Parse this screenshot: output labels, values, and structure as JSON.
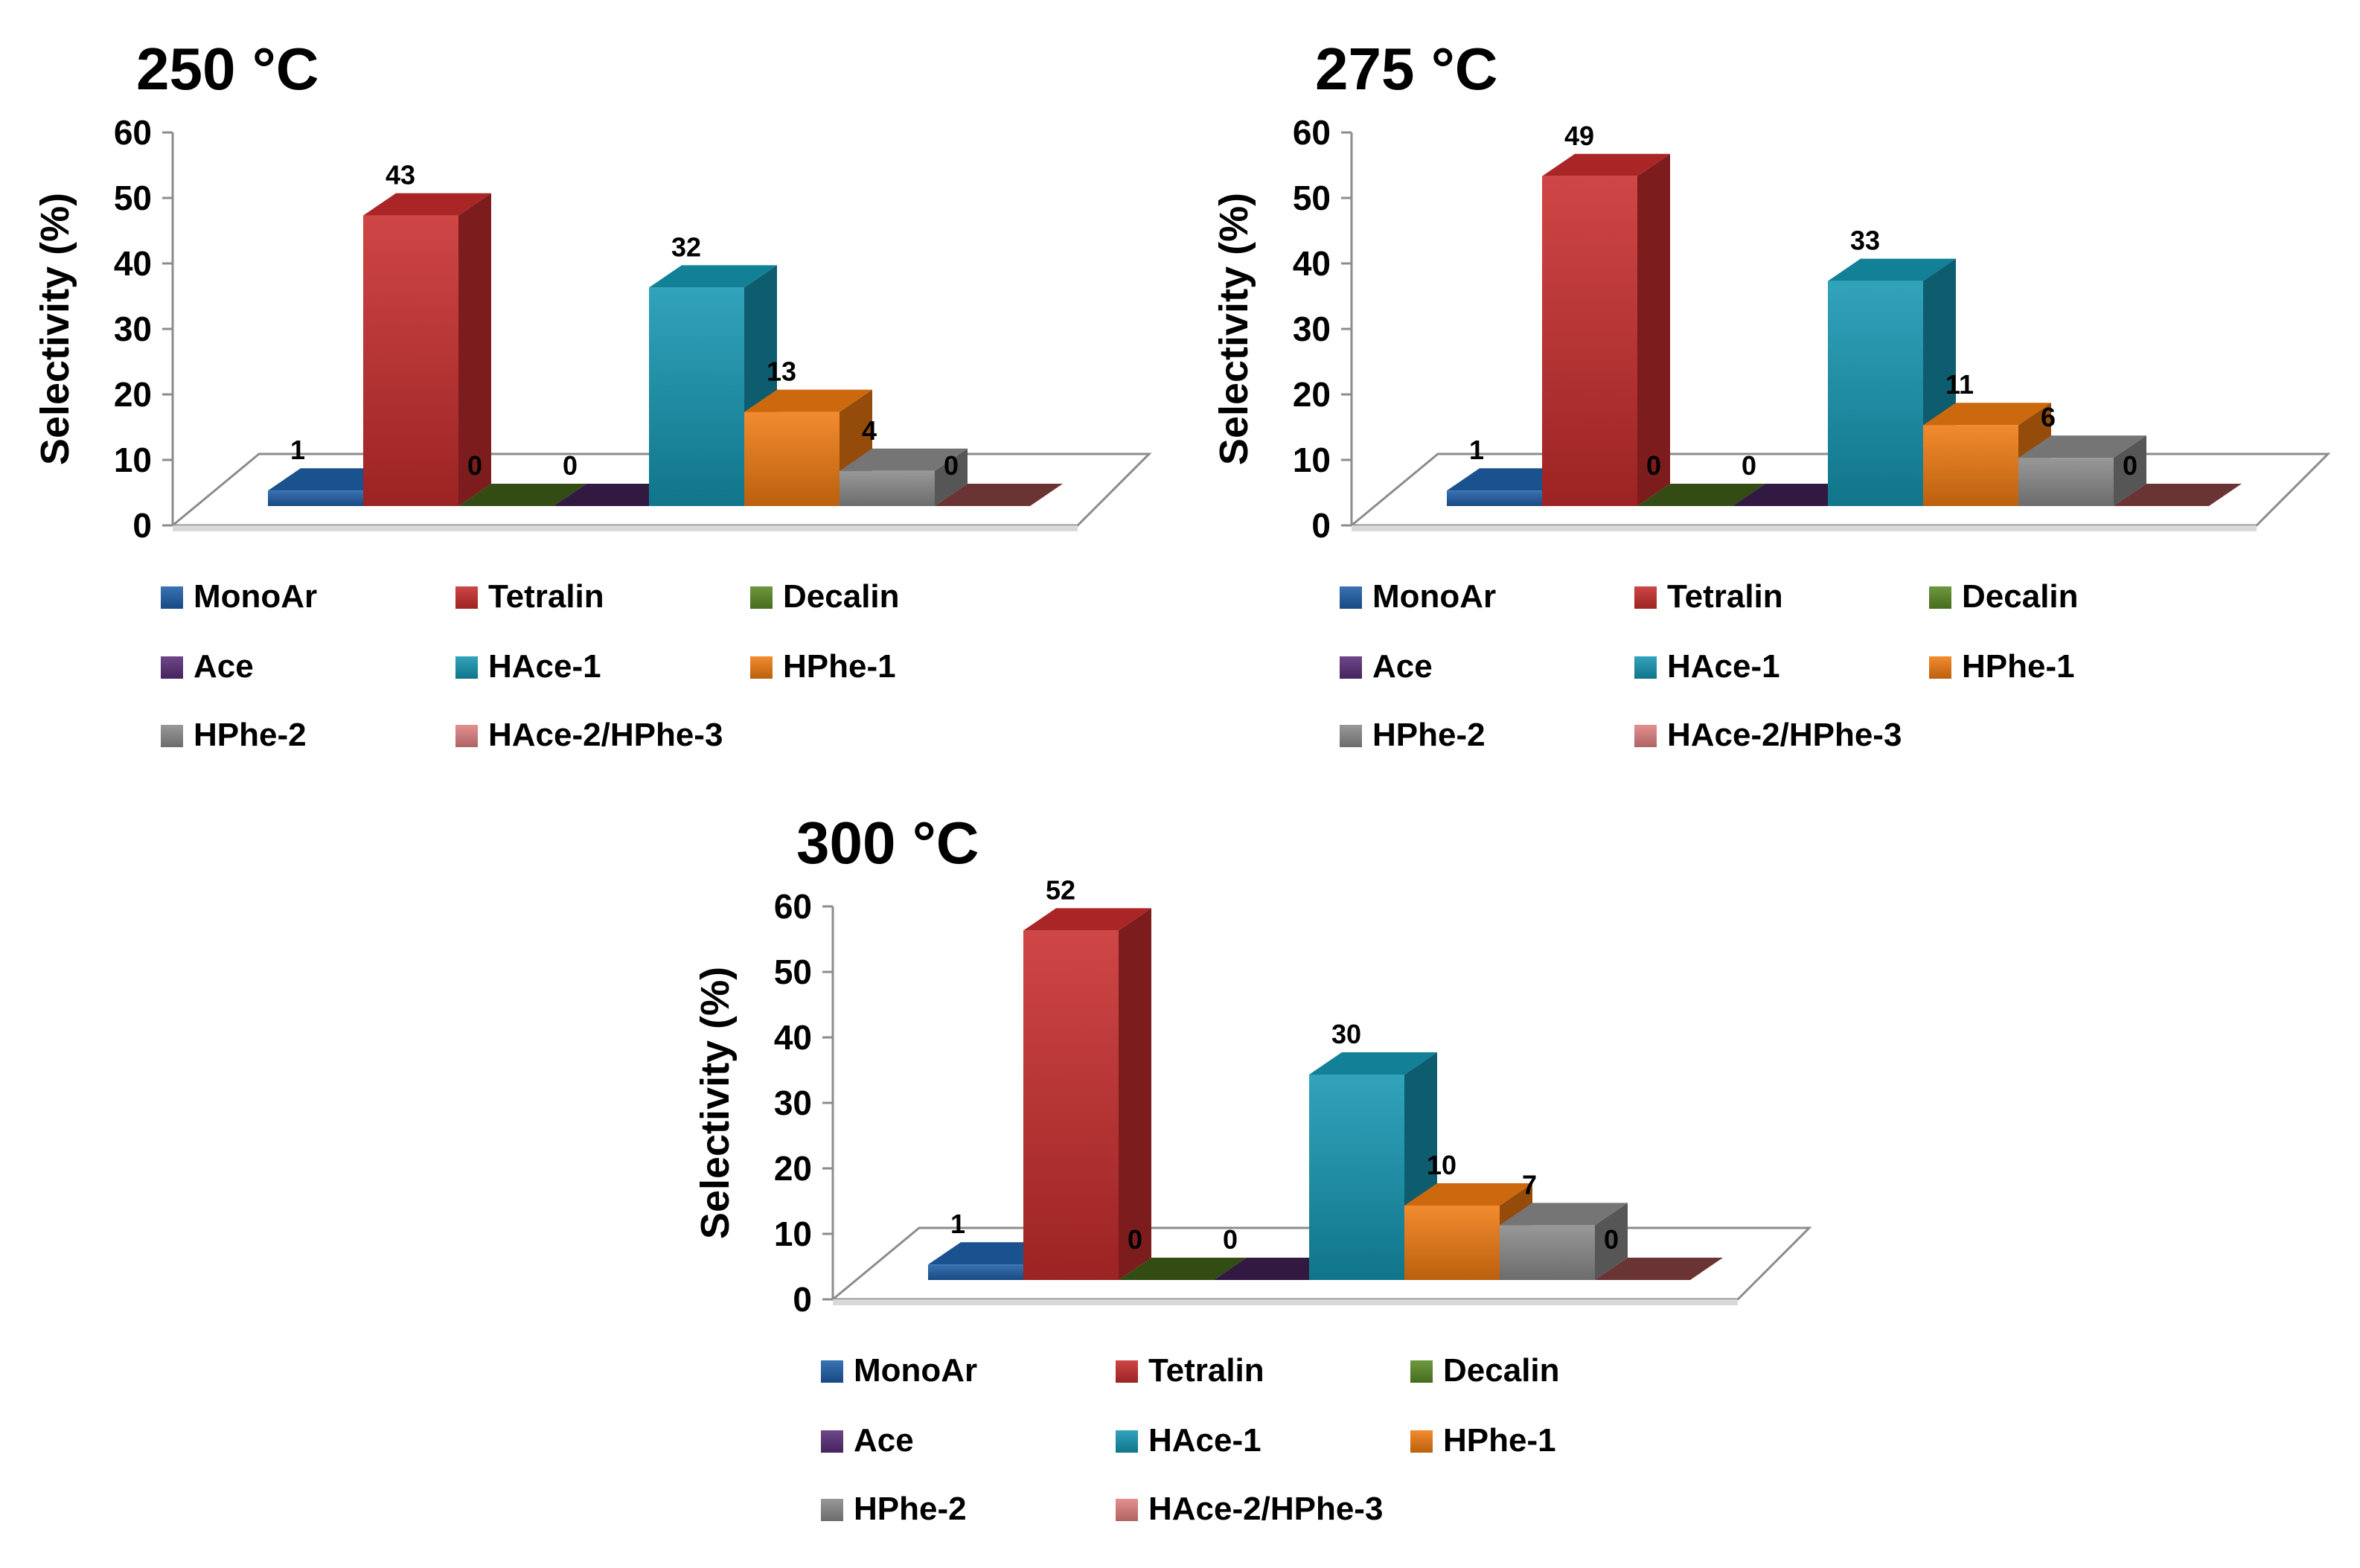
{
  "chart_data": [
    {
      "type": "bar",
      "title": "250 °C",
      "xlabel": "",
      "ylabel": "Selectivity (%)",
      "ylim": [
        0,
        60
      ],
      "yticks": [
        0,
        10,
        20,
        30,
        40,
        50,
        60
      ],
      "grid": false,
      "legend_position": "bottom",
      "categories": [
        "MonoAr",
        "Tetralin",
        "Decalin",
        "Ace",
        "HAce-1",
        "HPhe-1",
        "HPhe-2",
        "HAce-2/HPhe-3"
      ],
      "values": [
        1,
        43,
        0,
        0,
        32,
        13,
        4,
        0
      ],
      "data_labels": [
        "1",
        "43",
        "0",
        "0",
        "32",
        "13",
        "4",
        "0"
      ]
    },
    {
      "type": "bar",
      "title": "275 °C",
      "xlabel": "",
      "ylabel": "Selectivity (%)",
      "ylim": [
        0,
        60
      ],
      "yticks": [
        0,
        10,
        20,
        30,
        40,
        50,
        60
      ],
      "grid": false,
      "legend_position": "bottom",
      "categories": [
        "MonoAr",
        "Tetralin",
        "Decalin",
        "Ace",
        "HAce-1",
        "HPhe-1",
        "HPhe-2",
        "HAce-2/HPhe-3"
      ],
      "values": [
        1,
        49,
        0,
        0,
        33,
        11,
        6,
        0
      ],
      "data_labels": [
        "1",
        "49",
        "0",
        "0",
        "33",
        "11",
        "6",
        "0"
      ]
    },
    {
      "type": "bar",
      "title": "300 °C",
      "xlabel": "",
      "ylabel": "Selectivity (%)",
      "ylim": [
        0,
        60
      ],
      "yticks": [
        0,
        10,
        20,
        30,
        40,
        50,
        60
      ],
      "grid": false,
      "legend_position": "bottom",
      "categories": [
        "MonoAr",
        "Tetralin",
        "Decalin",
        "Ace",
        "HAce-1",
        "HPhe-1",
        "HPhe-2",
        "HAce-2/HPhe-3"
      ],
      "values": [
        1,
        52,
        0,
        0,
        30,
        10,
        7,
        0
      ],
      "data_labels": [
        "1",
        "52",
        "0",
        "0",
        "30",
        "10",
        "7",
        "0"
      ]
    }
  ],
  "colors": {
    "MonoAr": "#1f5fa8",
    "Tetralin": "#c82d2d",
    "Decalin": "#5a8a25",
    "Ace": "#5a2e78",
    "HAce-1": "#1596b2",
    "HPhe-1": "#f07b12",
    "HPhe-2": "#8a8a8a",
    "HAce-2/HPhe-3": "#e08080"
  },
  "floor_colors": {
    "HAce-2/HPhe-3": "#6b3434"
  }
}
